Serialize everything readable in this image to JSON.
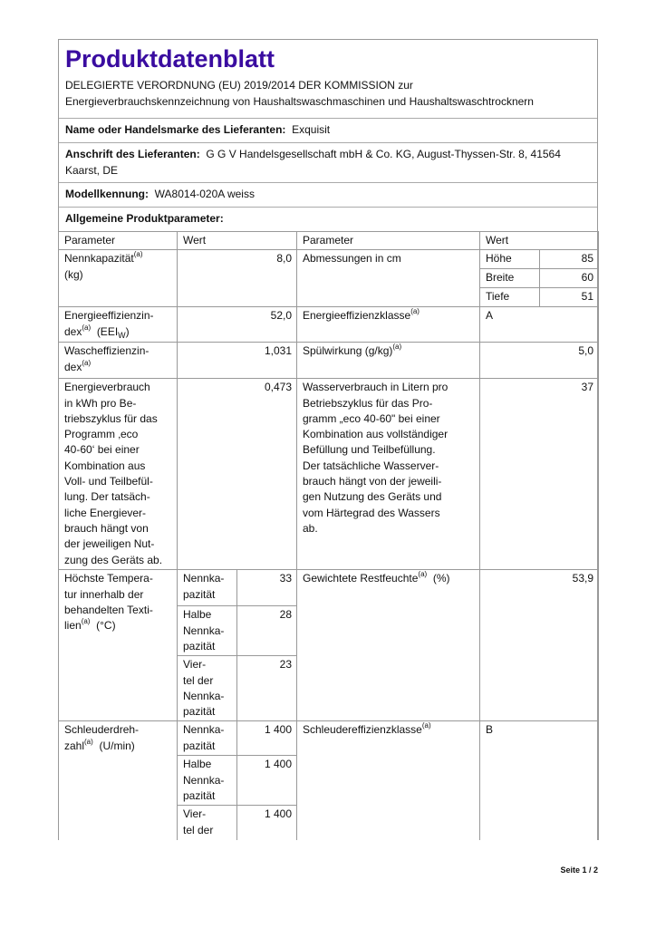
{
  "title": "Produktdatenblatt",
  "regulation": "DELEGIERTE VERORDNUNG (EU) 2019/2014 DER KOMMISSION zur\nEnergieverbrauchskennzeichnung von Haushaltswaschmaschinen und Haushaltswaschtrocknern",
  "supplier_name": {
    "label": "Name oder Handelsmarke des Lieferanten:",
    "value": "Exquisit"
  },
  "supplier_address": {
    "label": "Anschrift des Lieferanten:",
    "value": "G G V Handelsgesellschaft mbH & Co. KG, August-Thyssen-Str. 8, 41564 Kaarst, DE"
  },
  "model": {
    "label": "Modellkennung:",
    "value": "WA8014-020A weiss"
  },
  "section_heading": "Allgemeine Produktparameter:",
  "table": {
    "headers": {
      "param1": "Parameter",
      "value1": "Wert",
      "param2": "Parameter",
      "value2": "Wert"
    },
    "sup": "(a)",
    "capacity": {
      "label": "Nennkapazität",
      "unit": "(kg)",
      "value": "8,0"
    },
    "dimensions": {
      "label": "Abmessungen in cm",
      "rows": [
        {
          "label": "Höhe",
          "value": "85"
        },
        {
          "label": "Breite",
          "value": "60"
        },
        {
          "label": "Tiefe",
          "value": "51"
        }
      ]
    },
    "eei": {
      "label": "Energieeffizienzin-\ndex",
      "unit_pre": "(EEI",
      "unit_sub": "W",
      "unit_post": ")",
      "value": "52,0"
    },
    "energy_class": {
      "label": "Energieeffizienzklasse",
      "value": "A"
    },
    "wash_eff": {
      "label": "Wascheffizienzin-\ndex",
      "value": "1,031"
    },
    "rinse": {
      "label": "Spülwirkung (g/kg)",
      "value": "5,0"
    },
    "energy_consumption": {
      "label": "Energieverbrauch\nin kWh pro Be-\ntriebszyklus für das\nProgramm ‚eco\n40-60‘ bei einer\nKombination aus\nVoll- und Teilbefül-\nlung. Der tatsäch-\nliche Energiever-\nbrauch hängt von\nder jeweiligen Nut-\nzung des Geräts ab.",
      "value": "0,473"
    },
    "water_consumption": {
      "label": "Wasserverbrauch in Litern pro\nBetriebszyklus für das Pro-\ngramm „eco 40-60\" bei einer\nKombination aus vollständiger\nBefüllung und Teilbefüllung.\nDer tatsächliche Wasserver-\nbrauch hängt von der jeweili-\ngen Nutzung des Geräts und\nvom Härtegrad des Wassers\nab.",
      "value": "37"
    },
    "max_temp": {
      "label": "Höchste Tempera-\ntur innerhalb der\nbehandelten Texti-\nlien",
      "unit": "(°C)",
      "rows": [
        {
          "label": "Nennka-\npazität",
          "value": "33"
        },
        {
          "label": "Halbe\nNennka-\npazität",
          "value": "28"
        },
        {
          "label": "Vier-\ntel der\nNennka-\npazität",
          "value": "23"
        }
      ]
    },
    "moisture": {
      "label": "Gewichtete Restfeuchte",
      "unit": "(%)",
      "value": "53,9"
    },
    "spin_speed": {
      "label": "Schleuderdreh-\nzahl",
      "unit": "(U/min)",
      "rows": [
        {
          "label": "Nennka-\npazität",
          "value": "1 400"
        },
        {
          "label": "Halbe\nNennka-\npazität",
          "value": "1 400"
        },
        {
          "label": "Vier-\ntel der",
          "value": "1 400"
        }
      ]
    },
    "spin_class": {
      "label": "Schleudereffizienzklasse",
      "value": "B"
    }
  },
  "footer": "Seite 1 / 2",
  "colors": {
    "title": "#3a0ca0",
    "border": "#999999"
  }
}
